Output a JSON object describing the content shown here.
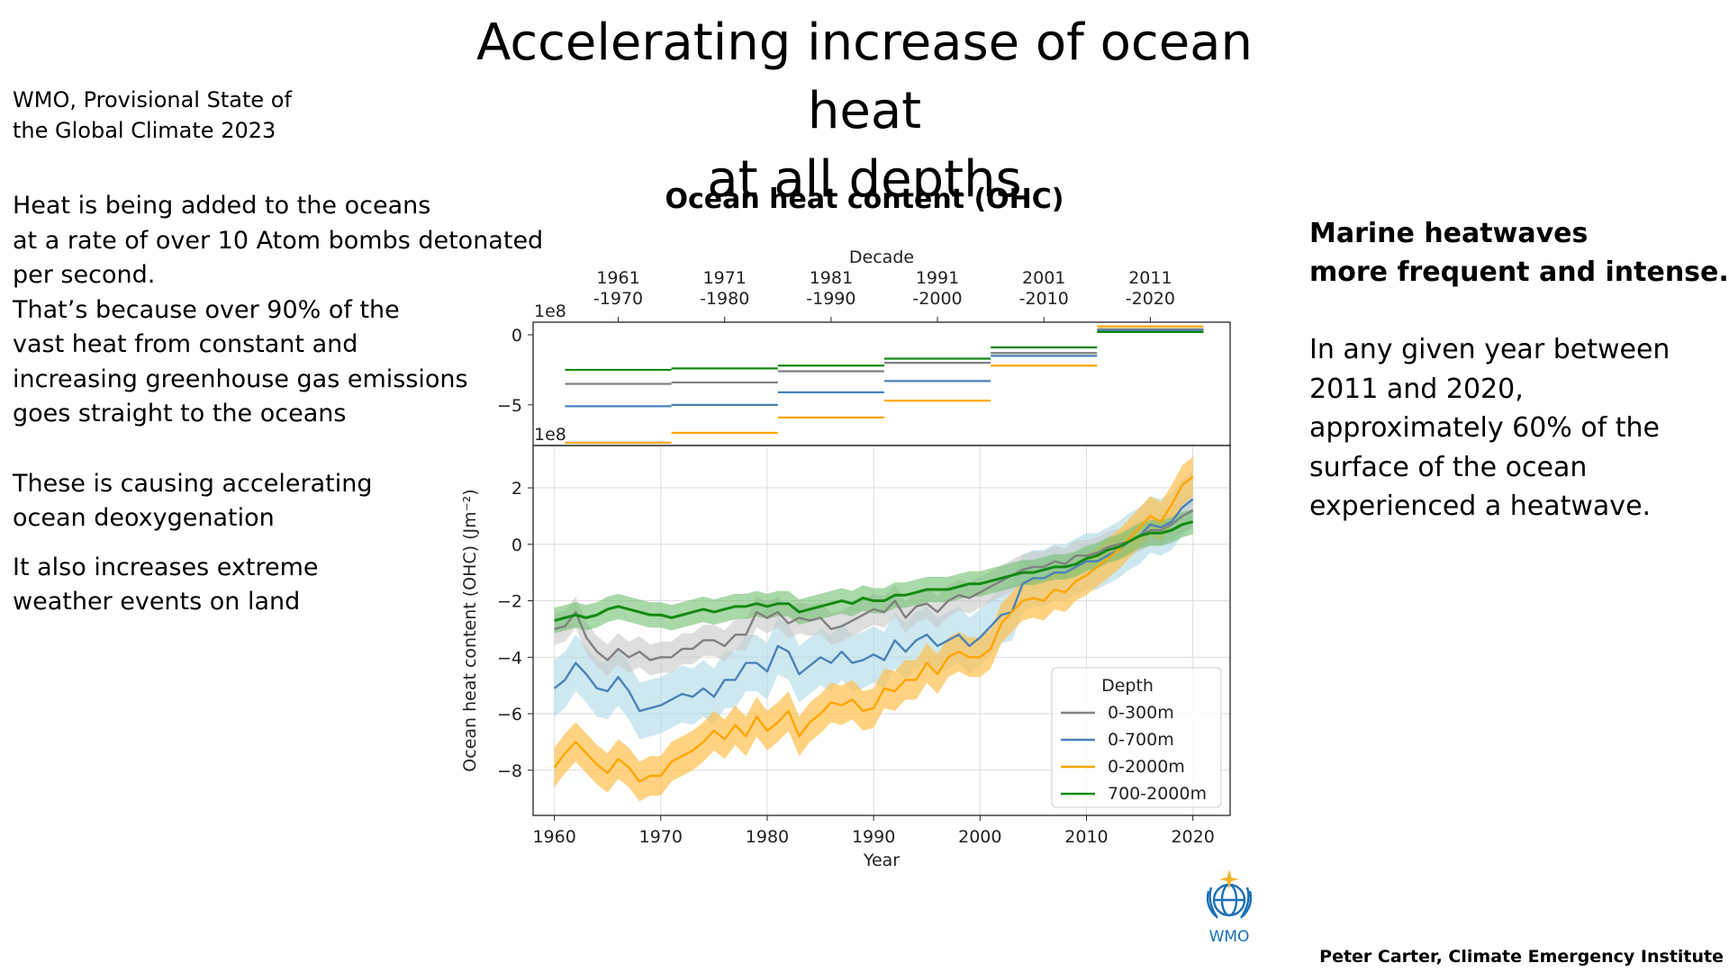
{
  "slide": {
    "title_lines": [
      "Accelerating increase of ocean heat",
      "at all depths"
    ],
    "source_lines": [
      "WMO, Provisional State of",
      "the Global Climate 2023"
    ],
    "left_para1": [
      "Heat is being added to the oceans",
      "at a rate of over 10 Atom bombs detonated",
      "per second.",
      "That’s because over 90% of the",
      "vast heat from constant and",
      "increasing greenhouse gas emissions",
      "goes straight to the oceans"
    ],
    "left_para2": [
      "These is causing accelerating",
      "ocean deoxygenation"
    ],
    "left_para3": [
      "It also increases extreme",
      "weather events on land"
    ],
    "right_heading": [
      "Marine heatwaves",
      "more frequent and intense."
    ],
    "right_body": [
      "In any given year between",
      "2011 and 2020,",
      "approximately 60% of the",
      "surface of the ocean",
      "experienced a heatwave."
    ],
    "logo_text": "WMO",
    "credit": "Peter Carter, Climate Emergency Institute"
  },
  "colors": {
    "0-300m": "#808080",
    "0-700m": "#4a82b8",
    "0-2000m": "#ffa500",
    "700-2000m": "#138a13",
    "band_0-300m": "#c8c8c8",
    "band_0-700m": "#add8e6",
    "band_0-2000m": "#ffc04d",
    "band_700-2000m": "#6fbf6f",
    "logo": "#1a6fb5"
  },
  "chart_data": [
    {
      "type": "line",
      "panel": "decadal means",
      "title": "Ocean heat content (OHC)",
      "xlabel": "Decade",
      "multiplier_label": "1e8",
      "decades": [
        "1961\n-1970",
        "1971\n-1980",
        "1981\n-1990",
        "1991\n-2000",
        "2001\n-2010",
        "2011\n-2020"
      ],
      "decade_labels_top": [
        "1961",
        "1971",
        "1981",
        "1991",
        "2001",
        "2011"
      ],
      "decade_labels_bottom": [
        "-1970",
        "-1980",
        "-1990",
        "-2000",
        "-2010",
        "-2020"
      ],
      "yticks": [
        0,
        -5
      ],
      "ylim": [
        -7.9,
        0.9
      ],
      "series": [
        {
          "name": "0-300m",
          "values": [
            -3.5,
            -3.4,
            -2.6,
            -2.0,
            -1.3,
            0.4
          ]
        },
        {
          "name": "0-700m",
          "values": [
            -5.1,
            -5.0,
            -4.1,
            -3.3,
            -1.5,
            0.3
          ]
        },
        {
          "name": "0-2000m",
          "values": [
            -7.7,
            -7.0,
            -5.9,
            -4.7,
            -2.2,
            0.6
          ]
        },
        {
          "name": "700-2000m",
          "values": [
            -2.5,
            -2.4,
            -2.2,
            -1.7,
            -0.9,
            0.2
          ]
        }
      ]
    },
    {
      "type": "line",
      "panel": "annual series",
      "xlabel": "Year",
      "ylabel": "Ocean heat content (OHC) (Jm⁻²)",
      "multiplier_label": "1e8",
      "xlim": [
        1958,
        2023.5
      ],
      "ylim": [
        -9.6,
        3.5
      ],
      "xticks": [
        1960,
        1970,
        1980,
        1990,
        2000,
        2010,
        2020
      ],
      "yticks": [
        2,
        0,
        -2,
        -4,
        -6,
        -8
      ],
      "grid": true,
      "legend": {
        "title": "Depth",
        "position": "lower right"
      },
      "x": [
        1960,
        1961,
        1962,
        1963,
        1964,
        1965,
        1966,
        1967,
        1968,
        1969,
        1970,
        1971,
        1972,
        1973,
        1974,
        1975,
        1976,
        1977,
        1978,
        1979,
        1980,
        1981,
        1982,
        1983,
        1984,
        1985,
        1986,
        1987,
        1988,
        1989,
        1990,
        1991,
        1992,
        1993,
        1994,
        1995,
        1996,
        1997,
        1998,
        1999,
        2000,
        2001,
        2002,
        2003,
        2004,
        2005,
        2006,
        2007,
        2008,
        2009,
        2010,
        2011,
        2012,
        2013,
        2014,
        2015,
        2016,
        2017,
        2018,
        2019,
        2020
      ],
      "series": [
        {
          "name": "0-300m",
          "band": 0.55,
          "values": [
            -3.0,
            -2.9,
            -2.4,
            -3.3,
            -3.8,
            -4.1,
            -3.7,
            -4.0,
            -3.8,
            -4.1,
            -4.0,
            -4.0,
            -3.7,
            -3.7,
            -3.4,
            -3.4,
            -3.6,
            -3.2,
            -3.2,
            -2.4,
            -2.6,
            -2.4,
            -2.8,
            -2.6,
            -2.7,
            -2.6,
            -3.0,
            -2.9,
            -2.7,
            -2.5,
            -2.3,
            -2.4,
            -2.0,
            -2.6,
            -2.2,
            -2.1,
            -2.4,
            -2.0,
            -1.8,
            -1.9,
            -1.7,
            -1.5,
            -1.3,
            -1.1,
            -0.9,
            -0.8,
            -0.8,
            -0.6,
            -0.7,
            -0.4,
            -0.4,
            -0.3,
            -0.1,
            0.0,
            0.1,
            0.3,
            0.5,
            0.5,
            0.7,
            1.0,
            1.2
          ]
        },
        {
          "name": "0-700m",
          "band": 1.0,
          "values": [
            -5.1,
            -4.8,
            -4.2,
            -4.6,
            -5.1,
            -5.2,
            -4.7,
            -5.2,
            -5.9,
            -5.8,
            -5.7,
            -5.5,
            -5.3,
            -5.4,
            -5.1,
            -5.4,
            -4.8,
            -4.8,
            -4.2,
            -4.2,
            -4.5,
            -3.6,
            -3.8,
            -4.6,
            -4.3,
            -4.0,
            -4.2,
            -3.8,
            -4.2,
            -4.1,
            -3.9,
            -4.1,
            -3.4,
            -3.8,
            -3.4,
            -3.2,
            -3.6,
            -3.4,
            -3.2,
            -3.6,
            -3.3,
            -2.9,
            -2.5,
            -2.4,
            -1.4,
            -1.2,
            -1.2,
            -1.0,
            -1.0,
            -0.8,
            -0.6,
            -0.6,
            -0.4,
            -0.2,
            0.1,
            0.3,
            0.7,
            0.6,
            0.8,
            1.3,
            1.6
          ]
        },
        {
          "name": "0-2000m",
          "band": 0.7,
          "values": [
            -7.9,
            -7.4,
            -7.0,
            -7.4,
            -7.8,
            -8.1,
            -7.6,
            -7.9,
            -8.4,
            -8.2,
            -8.2,
            -7.7,
            -7.5,
            -7.3,
            -7.0,
            -6.6,
            -6.9,
            -6.4,
            -6.8,
            -6.1,
            -6.6,
            -6.3,
            -5.9,
            -6.8,
            -6.3,
            -6.0,
            -5.6,
            -5.7,
            -5.5,
            -5.9,
            -5.8,
            -5.1,
            -5.2,
            -4.8,
            -4.8,
            -4.2,
            -4.6,
            -4.0,
            -3.8,
            -4.0,
            -4.0,
            -3.7,
            -2.8,
            -2.4,
            -2.0,
            -1.9,
            -2.0,
            -1.6,
            -1.7,
            -1.3,
            -1.1,
            -0.8,
            -0.5,
            -0.2,
            0.2,
            0.6,
            1.0,
            0.8,
            1.4,
            2.1,
            2.4
          ]
        },
        {
          "name": "700-2000m",
          "band": 0.45,
          "values": [
            -2.7,
            -2.6,
            -2.5,
            -2.6,
            -2.5,
            -2.3,
            -2.2,
            -2.3,
            -2.4,
            -2.5,
            -2.5,
            -2.6,
            -2.5,
            -2.4,
            -2.3,
            -2.4,
            -2.3,
            -2.2,
            -2.2,
            -2.1,
            -2.2,
            -2.1,
            -2.1,
            -2.4,
            -2.3,
            -2.2,
            -2.1,
            -2.0,
            -2.1,
            -1.9,
            -2.0,
            -2.0,
            -1.8,
            -1.8,
            -1.7,
            -1.6,
            -1.6,
            -1.6,
            -1.5,
            -1.4,
            -1.4,
            -1.3,
            -1.2,
            -1.1,
            -1.0,
            -1.0,
            -0.9,
            -0.8,
            -0.8,
            -0.7,
            -0.5,
            -0.4,
            -0.2,
            -0.1,
            0.1,
            0.3,
            0.4,
            0.4,
            0.5,
            0.7,
            0.8
          ]
        }
      ]
    }
  ]
}
